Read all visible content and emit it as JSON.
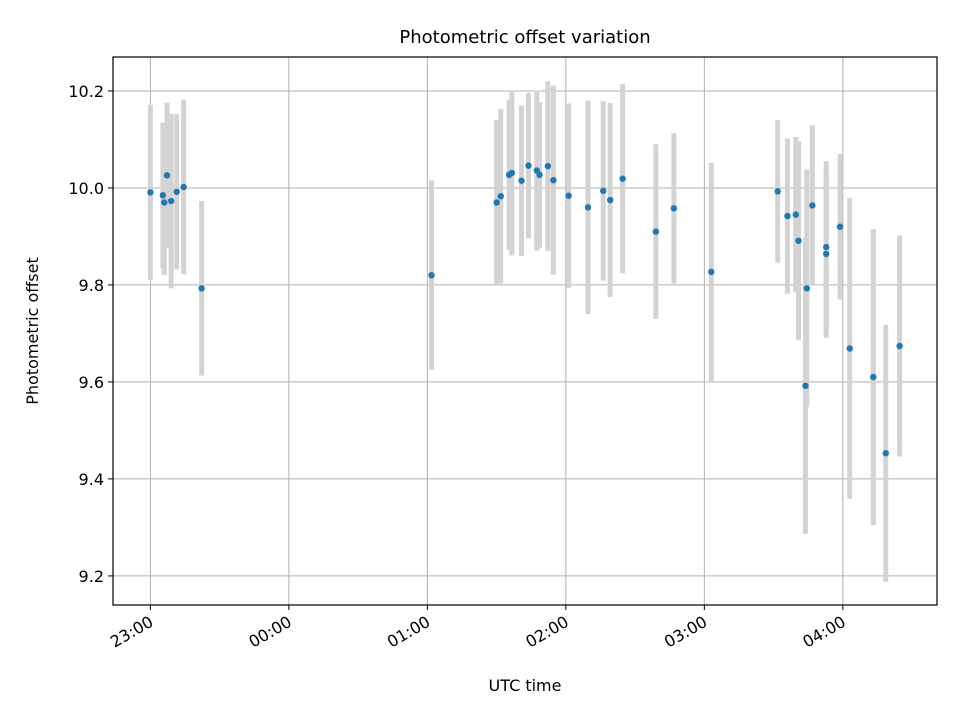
{
  "chart_data": {
    "type": "scatter",
    "title": "Photometric offset variation",
    "xlabel": "UTC time",
    "ylabel": "Photometric offset",
    "grid": true,
    "xlim_hours": [
      -1.27,
      4.68
    ],
    "ylim": [
      9.14,
      10.27
    ],
    "x_ticks": [
      {
        "t": -1.0,
        "label": "23:00"
      },
      {
        "t": 0.0,
        "label": "00:00"
      },
      {
        "t": 1.0,
        "label": "01:00"
      },
      {
        "t": 2.0,
        "label": "02:00"
      },
      {
        "t": 3.0,
        "label": "03:00"
      },
      {
        "t": 4.0,
        "label": "04:00"
      }
    ],
    "y_ticks": [
      {
        "v": 9.2,
        "label": "9.2"
      },
      {
        "v": 9.4,
        "label": "9.4"
      },
      {
        "v": 9.6,
        "label": "9.6"
      },
      {
        "v": 9.8,
        "label": "9.8"
      },
      {
        "v": 10.0,
        "label": "10.0"
      },
      {
        "v": 10.2,
        "label": "10.2"
      }
    ],
    "colors": {
      "point": "#1f77b4",
      "errorbar": "#d3d3d3",
      "grid": "#b0b0b0"
    },
    "series": [
      {
        "name": "offset",
        "points": [
          {
            "t": -1.0,
            "y": 9.991,
            "err": 0.18
          },
          {
            "t": -0.91,
            "y": 9.985,
            "err": 0.15
          },
          {
            "t": -0.9,
            "y": 9.97,
            "err": 0.15
          },
          {
            "t": -0.88,
            "y": 10.026,
            "err": 0.15
          },
          {
            "t": -0.85,
            "y": 9.973,
            "err": 0.18
          },
          {
            "t": -0.81,
            "y": 9.992,
            "err": 0.16
          },
          {
            "t": -0.76,
            "y": 10.002,
            "err": 0.18
          },
          {
            "t": -0.63,
            "y": 9.793,
            "err": 0.18
          },
          {
            "t": 1.03,
            "y": 9.82,
            "err": 0.195
          },
          {
            "t": 1.5,
            "y": 9.97,
            "err": 0.17
          },
          {
            "t": 1.53,
            "y": 9.983,
            "err": 0.18
          },
          {
            "t": 1.59,
            "y": 10.027,
            "err": 0.155
          },
          {
            "t": 1.61,
            "y": 10.031,
            "err": 0.17
          },
          {
            "t": 1.68,
            "y": 10.015,
            "err": 0.155
          },
          {
            "t": 1.73,
            "y": 10.046,
            "err": 0.15
          },
          {
            "t": 1.79,
            "y": 10.036,
            "err": 0.165
          },
          {
            "t": 1.81,
            "y": 10.027,
            "err": 0.15
          },
          {
            "t": 1.87,
            "y": 10.045,
            "err": 0.175
          },
          {
            "t": 1.91,
            "y": 10.016,
            "err": 0.195
          },
          {
            "t": 2.02,
            "y": 9.984,
            "err": 0.19
          },
          {
            "t": 2.16,
            "y": 9.96,
            "err": 0.22
          },
          {
            "t": 2.27,
            "y": 9.994,
            "err": 0.185
          },
          {
            "t": 2.32,
            "y": 9.975,
            "err": 0.2
          },
          {
            "t": 2.41,
            "y": 10.019,
            "err": 0.195
          },
          {
            "t": 2.65,
            "y": 9.91,
            "err": 0.18
          },
          {
            "t": 2.78,
            "y": 9.958,
            "err": 0.155
          },
          {
            "t": 3.05,
            "y": 9.827,
            "err": 0.225
          },
          {
            "t": 3.53,
            "y": 9.993,
            "err": 0.147
          },
          {
            "t": 3.6,
            "y": 9.942,
            "err": 0.16
          },
          {
            "t": 3.66,
            "y": 9.945,
            "err": 0.16
          },
          {
            "t": 3.68,
            "y": 9.891,
            "err": 0.205
          },
          {
            "t": 3.73,
            "y": 9.592,
            "err": 0.305
          },
          {
            "t": 3.74,
            "y": 9.793,
            "err": 0.245
          },
          {
            "t": 3.78,
            "y": 9.964,
            "err": 0.165
          },
          {
            "t": 3.88,
            "y": 9.878,
            "err": 0.177
          },
          {
            "t": 3.88,
            "y": 9.864,
            "err": 0.173
          },
          {
            "t": 3.98,
            "y": 9.92,
            "err": 0.15
          },
          {
            "t": 4.05,
            "y": 9.669,
            "err": 0.31
          },
          {
            "t": 4.22,
            "y": 9.61,
            "err": 0.305
          },
          {
            "t": 4.31,
            "y": 9.453,
            "err": 0.265
          },
          {
            "t": 4.41,
            "y": 9.674,
            "err": 0.228
          }
        ]
      }
    ]
  }
}
